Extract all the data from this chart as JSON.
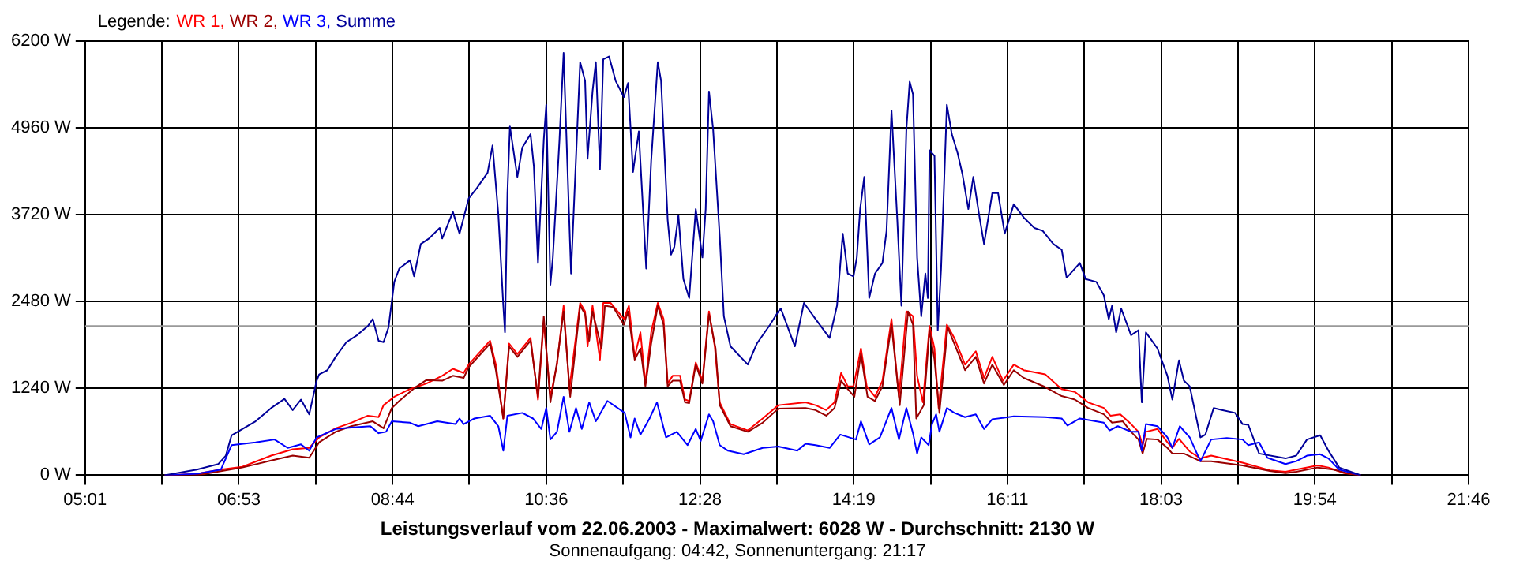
{
  "chart_data": {
    "type": "line",
    "title": "Leistungsverlauf vom 22.06.2003 - Maximalwert: 6028 W - Durchschnitt: 2130 W",
    "subtitle": "Sonnenaufgang: 04:42, Sonnenuntergang: 21:17",
    "legend_title": "Legende:",
    "legend": "top left",
    "grid": true,
    "xlim": [
      5.017,
      21.767
    ],
    "xticks": [
      {
        "value": 5.017,
        "label": "05:01"
      },
      {
        "value": 5.947,
        "label": null
      },
      {
        "value": 6.878,
        "label": "06:53"
      },
      {
        "value": 7.808,
        "label": null
      },
      {
        "value": 8.739,
        "label": "08:44"
      },
      {
        "value": 9.669,
        "label": null
      },
      {
        "value": 10.6,
        "label": "10:36"
      },
      {
        "value": 11.53,
        "label": null
      },
      {
        "value": 12.461,
        "label": "12:28"
      },
      {
        "value": 13.392,
        "label": null
      },
      {
        "value": 14.322,
        "label": "14:19"
      },
      {
        "value": 15.253,
        "label": null
      },
      {
        "value": 16.183,
        "label": "16:11"
      },
      {
        "value": 17.114,
        "label": null
      },
      {
        "value": 18.044,
        "label": "18:03"
      },
      {
        "value": 18.975,
        "label": null
      },
      {
        "value": 19.906,
        "label": "19:54"
      },
      {
        "value": 20.836,
        "label": null
      },
      {
        "value": 21.767,
        "label": "21:46"
      }
    ],
    "ylim": [
      0,
      6200
    ],
    "yticks": [
      {
        "value": 0,
        "label": "0 W"
      },
      {
        "value": 1240,
        "label": "1240 W"
      },
      {
        "value": 2480,
        "label": "2480 W"
      },
      {
        "value": 3720,
        "label": "3720 W"
      },
      {
        "value": 4960,
        "label": "4960 W"
      },
      {
        "value": 6200,
        "label": "6200 W"
      }
    ],
    "ref_lines": [
      {
        "axis": "y",
        "value": 2130,
        "color": "#999999"
      }
    ],
    "series": [
      {
        "name": "WR 1,",
        "color": "#ff0000",
        "x": [
          5.98,
          6.37,
          6.66,
          6.92,
          7.27,
          7.53,
          7.73,
          7.85,
          8.05,
          8.24,
          8.44,
          8.57,
          8.63,
          8.76,
          8.95,
          9.15,
          9.34,
          9.47,
          9.6,
          9.66,
          9.92,
          9.99,
          10.08,
          10.15,
          10.25,
          10.41,
          10.5,
          10.57,
          10.65,
          10.73,
          10.81,
          10.88,
          11.01,
          11.07,
          11.1,
          11.16,
          11.25,
          11.29,
          11.38,
          11.54,
          11.6,
          11.67,
          11.74,
          11.8,
          11.87,
          11.95,
          12.02,
          12.07,
          12.13,
          12.22,
          12.28,
          12.33,
          12.41,
          12.49,
          12.57,
          12.64,
          12.7,
          12.83,
          13.04,
          13.22,
          13.41,
          13.74,
          13.86,
          13.99,
          14.09,
          14.17,
          14.25,
          14.32,
          14.41,
          14.48,
          14.58,
          14.67,
          14.78,
          14.87,
          14.96,
          15.04,
          15.09,
          15.16,
          15.24,
          15.3,
          15.35,
          15.45,
          15.54,
          15.67,
          15.8,
          15.9,
          16.0,
          16.13,
          16.26,
          16.38,
          16.64,
          16.84,
          17.0,
          17.16,
          17.35,
          17.43,
          17.55,
          17.68,
          17.77,
          17.82,
          17.86,
          18.0,
          18.12,
          18.18,
          18.26,
          18.39,
          18.52,
          18.65,
          19.03,
          19.36,
          19.55,
          19.68,
          19.94,
          20.07,
          20.26,
          20.46
        ],
        "values": [
          0,
          20,
          80,
          120,
          280,
          370,
          390,
          540,
          670,
          750,
          850,
          830,
          1000,
          1120,
          1230,
          1310,
          1420,
          1520,
          1460,
          1580,
          1920,
          1580,
          810,
          1880,
          1730,
          1960,
          1080,
          2190,
          1120,
          1580,
          2420,
          1230,
          2460,
          2340,
          1840,
          2420,
          1650,
          2460,
          2460,
          2230,
          2420,
          1690,
          2040,
          1310,
          2040,
          2460,
          2230,
          1310,
          1420,
          1420,
          1080,
          1060,
          1610,
          1350,
          2340,
          1840,
          1040,
          730,
          640,
          810,
          1000,
          1040,
          1000,
          930,
          1040,
          1460,
          1270,
          1270,
          1810,
          1270,
          1120,
          1350,
          2230,
          1120,
          2340,
          2270,
          1420,
          1040,
          2130,
          1810,
          960,
          2150,
          1960,
          1580,
          1770,
          1390,
          1690,
          1350,
          1580,
          1500,
          1440,
          1230,
          1190,
          1040,
          960,
          850,
          870,
          730,
          620,
          430,
          620,
          660,
          470,
          390,
          520,
          340,
          240,
          280,
          180,
          70,
          50,
          80,
          140,
          110,
          30,
          0
        ]
      },
      {
        "name": "WR 2,",
        "color": "#990000",
        "x": [
          5.98,
          6.37,
          6.92,
          7.27,
          7.53,
          7.73,
          7.85,
          8.05,
          8.24,
          8.5,
          8.63,
          8.73,
          8.82,
          9.02,
          9.15,
          9.34,
          9.47,
          9.6,
          9.66,
          9.92,
          9.99,
          10.08,
          10.15,
          10.25,
          10.41,
          10.5,
          10.57,
          10.65,
          10.73,
          10.81,
          10.89,
          11.01,
          11.07,
          11.12,
          11.16,
          11.27,
          11.31,
          11.41,
          11.54,
          11.59,
          11.67,
          11.74,
          11.8,
          11.87,
          11.95,
          12.02,
          12.07,
          12.13,
          12.22,
          12.28,
          12.33,
          12.41,
          12.49,
          12.57,
          12.65,
          12.7,
          12.83,
          13.04,
          13.22,
          13.41,
          13.74,
          13.86,
          13.99,
          14.09,
          14.17,
          14.25,
          14.33,
          14.41,
          14.49,
          14.58,
          14.67,
          14.78,
          14.88,
          14.98,
          15.04,
          15.08,
          15.17,
          15.24,
          15.3,
          15.36,
          15.46,
          15.54,
          15.67,
          15.8,
          15.9,
          16.0,
          16.14,
          16.26,
          16.38,
          16.64,
          16.84,
          17.0,
          17.16,
          17.35,
          17.45,
          17.58,
          17.68,
          17.77,
          17.82,
          17.87,
          18.0,
          18.12,
          18.18,
          18.32,
          18.52,
          18.65,
          19.03,
          19.36,
          19.55,
          19.68,
          19.94,
          20.13,
          20.33,
          20.46
        ],
        "values": [
          0,
          0,
          110,
          210,
          280,
          250,
          470,
          620,
          700,
          770,
          670,
          960,
          1060,
          1260,
          1360,
          1350,
          1420,
          1390,
          1540,
          1880,
          1500,
          810,
          1840,
          1690,
          1920,
          1120,
          2270,
          1040,
          1610,
          2340,
          1120,
          2420,
          2300,
          1920,
          2340,
          1810,
          2420,
          2400,
          2150,
          2340,
          1650,
          1810,
          1270,
          1880,
          2420,
          2150,
          1270,
          1350,
          1350,
          1040,
          1030,
          1580,
          1310,
          2300,
          1810,
          1000,
          700,
          620,
          750,
          950,
          960,
          930,
          850,
          960,
          1350,
          1230,
          1120,
          1730,
          1120,
          1060,
          1270,
          2150,
          1000,
          2340,
          2150,
          810,
          1000,
          2070,
          1650,
          890,
          2110,
          1880,
          1500,
          1690,
          1310,
          1580,
          1290,
          1500,
          1390,
          1260,
          1130,
          1080,
          960,
          870,
          750,
          770,
          620,
          510,
          310,
          520,
          510,
          390,
          310,
          310,
          200,
          200,
          140,
          60,
          30,
          50,
          110,
          80,
          20,
          0
        ]
      },
      {
        "name": "WR 3,",
        "color": "#0000ff",
        "x": [
          5.98,
          6.37,
          6.66,
          6.79,
          7.08,
          7.31,
          7.47,
          7.63,
          7.73,
          7.82,
          8.05,
          8.24,
          8.47,
          8.57,
          8.66,
          8.73,
          8.95,
          9.05,
          9.28,
          9.5,
          9.55,
          9.6,
          9.73,
          9.92,
          10.02,
          10.08,
          10.13,
          10.31,
          10.44,
          10.54,
          10.6,
          10.65,
          10.73,
          10.81,
          10.88,
          10.96,
          11.03,
          11.12,
          11.2,
          11.34,
          11.55,
          11.62,
          11.67,
          11.74,
          11.85,
          11.94,
          12.05,
          12.18,
          12.31,
          12.41,
          12.47,
          12.57,
          12.62,
          12.7,
          12.8,
          12.99,
          13.22,
          13.41,
          13.64,
          13.74,
          13.86,
          14.03,
          14.16,
          14.35,
          14.41,
          14.51,
          14.64,
          14.78,
          14.87,
          14.96,
          15.04,
          15.09,
          15.14,
          15.23,
          15.27,
          15.32,
          15.36,
          15.45,
          15.54,
          15.67,
          15.8,
          15.9,
          16.0,
          16.26,
          16.64,
          16.84,
          16.91,
          17.06,
          17.35,
          17.42,
          17.52,
          17.68,
          17.77,
          17.81,
          17.86,
          18.0,
          18.12,
          18.18,
          18.27,
          18.39,
          18.52,
          18.65,
          18.84,
          19.03,
          19.1,
          19.23,
          19.33,
          19.55,
          19.68,
          19.81,
          19.97,
          20.07,
          20.2,
          20.46
        ],
        "values": [
          0,
          20,
          80,
          430,
          470,
          510,
          390,
          440,
          350,
          540,
          660,
          680,
          700,
          600,
          620,
          770,
          750,
          700,
          770,
          730,
          810,
          730,
          810,
          850,
          700,
          350,
          850,
          890,
          810,
          660,
          960,
          510,
          620,
          1120,
          620,
          960,
          660,
          1040,
          770,
          1060,
          890,
          540,
          810,
          580,
          810,
          1040,
          540,
          620,
          430,
          660,
          490,
          870,
          770,
          430,
          350,
          300,
          390,
          410,
          350,
          450,
          430,
          390,
          580,
          510,
          770,
          440,
          540,
          960,
          510,
          960,
          600,
          310,
          540,
          430,
          730,
          870,
          620,
          960,
          890,
          830,
          870,
          660,
          800,
          840,
          830,
          810,
          710,
          810,
          750,
          640,
          700,
          620,
          620,
          350,
          730,
          700,
          540,
          390,
          700,
          540,
          200,
          510,
          530,
          510,
          430,
          470,
          250,
          160,
          200,
          280,
          300,
          240,
          80,
          0
        ]
      },
      {
        "name": "Summe",
        "color": "#000099",
        "x": [
          5.98,
          6.37,
          6.63,
          6.72,
          6.79,
          6.92,
          7.08,
          7.27,
          7.43,
          7.53,
          7.63,
          7.73,
          7.82,
          7.85,
          7.95,
          8.05,
          8.18,
          8.31,
          8.44,
          8.5,
          8.57,
          8.63,
          8.69,
          8.76,
          8.82,
          8.95,
          9.0,
          9.08,
          9.18,
          9.31,
          9.34,
          9.47,
          9.55,
          9.66,
          9.76,
          9.89,
          9.95,
          10.02,
          10.08,
          10.1,
          10.13,
          10.16,
          10.25,
          10.31,
          10.41,
          10.45,
          10.5,
          10.57,
          10.6,
          10.65,
          10.68,
          10.76,
          10.81,
          10.9,
          11.01,
          11.07,
          11.1,
          11.16,
          11.2,
          11.25,
          11.29,
          11.36,
          11.44,
          11.54,
          11.59,
          11.65,
          11.72,
          11.81,
          11.87,
          11.95,
          11.99,
          12.07,
          12.11,
          12.15,
          12.2,
          12.26,
          12.33,
          12.41,
          12.49,
          12.53,
          12.57,
          12.62,
          12.7,
          12.75,
          12.83,
          13.04,
          13.15,
          13.31,
          13.41,
          13.44,
          13.61,
          13.72,
          13.86,
          14.03,
          14.12,
          14.19,
          14.25,
          14.32,
          14.36,
          14.4,
          14.45,
          14.51,
          14.58,
          14.67,
          14.72,
          14.78,
          14.85,
          14.9,
          14.96,
          15.0,
          15.04,
          15.09,
          15.14,
          15.19,
          15.22,
          15.24,
          15.3,
          15.34,
          15.38,
          15.45,
          15.51,
          15.58,
          15.64,
          15.71,
          15.77,
          15.84,
          15.9,
          16.0,
          16.07,
          16.15,
          16.26,
          16.38,
          16.51,
          16.61,
          16.74,
          16.84,
          16.9,
          17.06,
          17.13,
          17.26,
          17.35,
          17.41,
          17.45,
          17.5,
          17.56,
          17.68,
          17.77,
          17.81,
          17.86,
          18.0,
          18.12,
          18.18,
          18.26,
          18.32,
          18.39,
          18.52,
          18.58,
          18.68,
          18.78,
          18.94,
          19.03,
          19.1,
          19.23,
          19.55,
          19.68,
          19.81,
          19.97,
          20.07,
          20.2,
          20.46
        ],
        "values": [
          0,
          80,
          160,
          280,
          570,
          660,
          770,
          960,
          1090,
          930,
          1080,
          870,
          1350,
          1440,
          1500,
          1690,
          1900,
          2000,
          2130,
          2230,
          1920,
          1900,
          2110,
          2760,
          2950,
          3070,
          2840,
          3300,
          3380,
          3530,
          3380,
          3760,
          3450,
          3950,
          4100,
          4320,
          4710,
          3720,
          2420,
          2040,
          4030,
          4980,
          4260,
          4680,
          4870,
          4410,
          3030,
          4790,
          5290,
          2720,
          3110,
          4790,
          6030,
          2880,
          5900,
          5630,
          4520,
          5480,
          5900,
          4370,
          5940,
          5980,
          5630,
          5400,
          5600,
          4330,
          4910,
          2950,
          4490,
          5900,
          5630,
          3640,
          3150,
          3260,
          3710,
          2800,
          2530,
          3800,
          3110,
          3800,
          5480,
          4940,
          3410,
          2270,
          1840,
          1580,
          1880,
          2150,
          2340,
          2380,
          1840,
          2460,
          2230,
          1960,
          2420,
          3450,
          2880,
          2840,
          3110,
          3800,
          4260,
          2530,
          2880,
          3030,
          3490,
          5210,
          3640,
          2420,
          4940,
          5620,
          5440,
          3110,
          2270,
          2880,
          2530,
          4640,
          4560,
          2070,
          2950,
          5290,
          4870,
          4600,
          4290,
          3800,
          4260,
          3720,
          3300,
          4030,
          4030,
          3450,
          3870,
          3680,
          3530,
          3490,
          3300,
          3220,
          2820,
          3030,
          2800,
          2760,
          2570,
          2230,
          2420,
          2040,
          2380,
          2000,
          2070,
          1040,
          2040,
          1810,
          1420,
          1080,
          1640,
          1350,
          1270,
          540,
          580,
          960,
          930,
          890,
          730,
          720,
          310,
          240,
          280,
          510,
          570,
          350,
          110,
          0
        ]
      }
    ]
  }
}
